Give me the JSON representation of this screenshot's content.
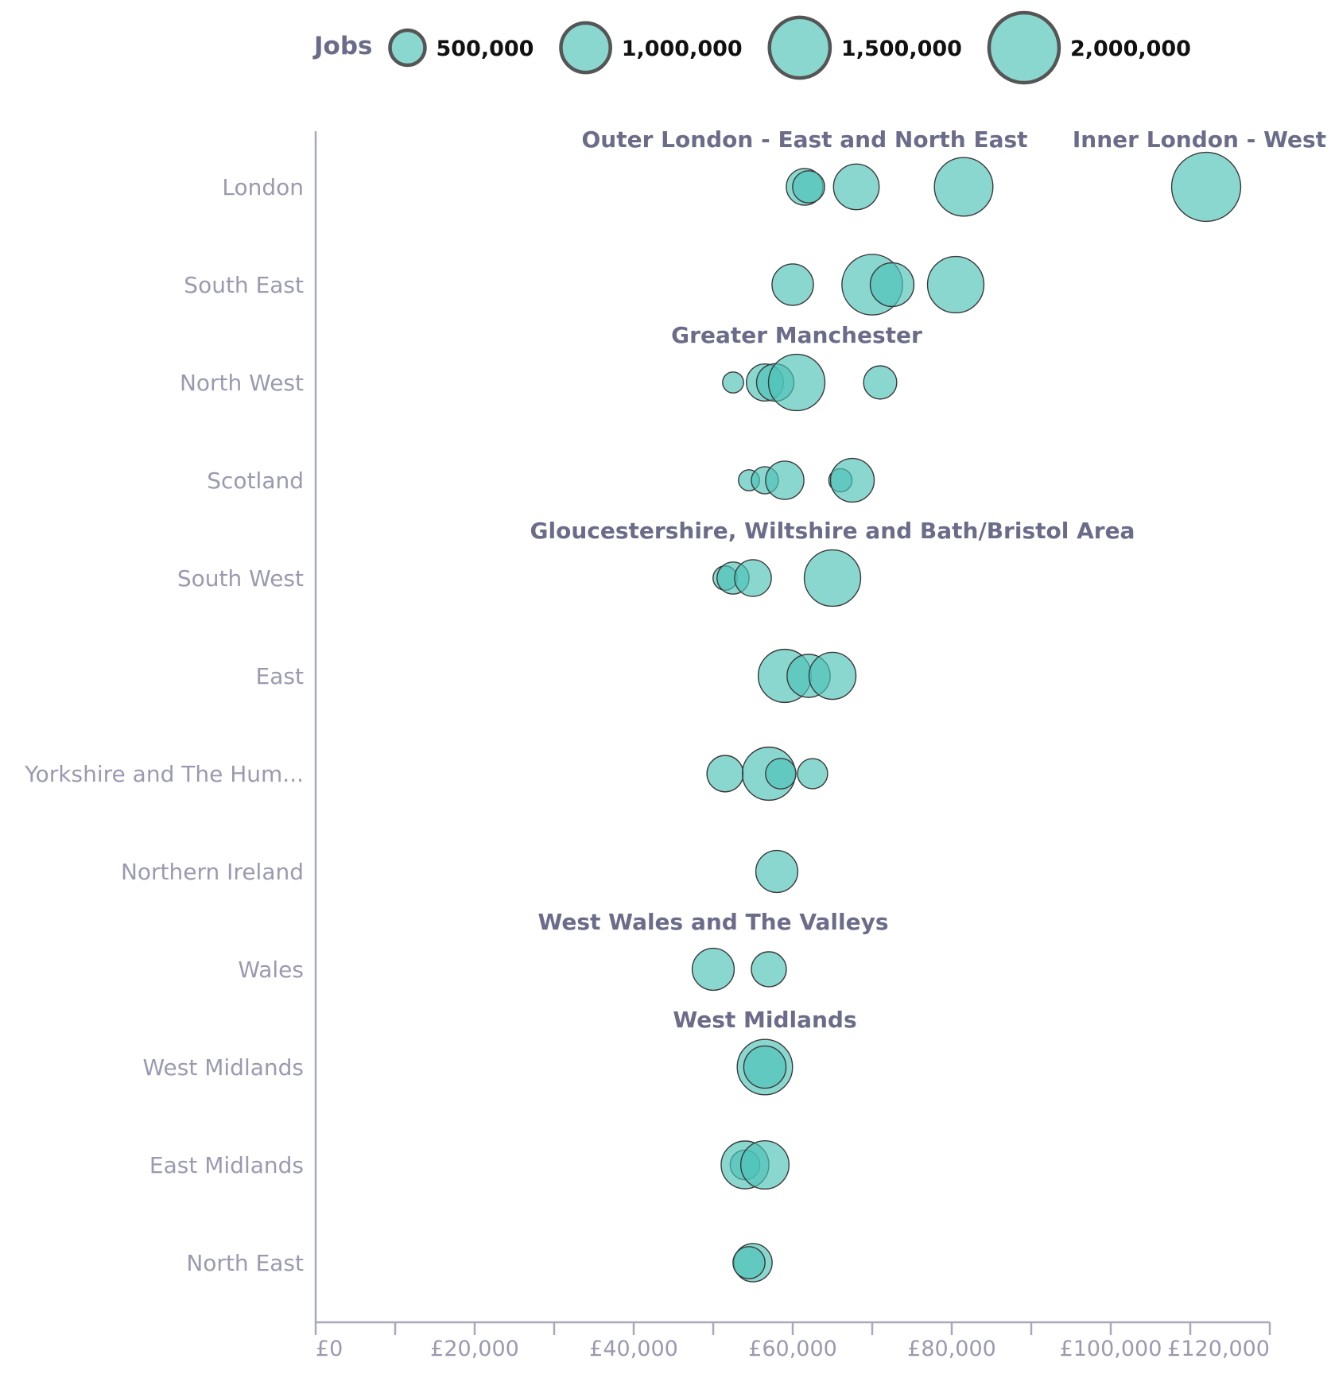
{
  "chart_data": {
    "type": "scatter",
    "subtype": "bubble",
    "xlim": [
      0,
      120000
    ],
    "x_ticks": [
      0,
      10000,
      20000,
      30000,
      40000,
      50000,
      60000,
      70000,
      80000,
      90000,
      100000,
      110000,
      120000
    ],
    "x_tick_labels": [
      {
        "value": 0,
        "label": "£0"
      },
      {
        "value": 20000,
        "label": "£20,000"
      },
      {
        "value": 40000,
        "label": "£40,000"
      },
      {
        "value": 60000,
        "label": "£60,000"
      },
      {
        "value": 80000,
        "label": "£80,000"
      },
      {
        "value": 100000,
        "label": "£100,000"
      },
      {
        "value": 120000,
        "label": "£120,000"
      }
    ],
    "categories": [
      "London",
      "South East",
      "North West",
      "Scotland",
      "South West",
      "East",
      "Yorkshire and The Hum...",
      "Northern Ireland",
      "Wales",
      "West Midlands",
      "East Midlands",
      "North East"
    ],
    "size_legend": {
      "title": "Jobs",
      "entries": [
        {
          "value": 500000,
          "label": "500,000"
        },
        {
          "value": 1000000,
          "label": "1,000,000"
        },
        {
          "value": 1500000,
          "label": "1,500,000"
        },
        {
          "value": 2000000,
          "label": "2,000,000"
        }
      ]
    },
    "annotations": [
      {
        "text": "Outer London - East and North East",
        "category": "London",
        "x": 61500
      },
      {
        "text": "Inner London - West",
        "category": "London",
        "x": 112000
      },
      {
        "text": "Greater Manchester",
        "category": "North West",
        "x": 60500
      },
      {
        "text": "Gloucestershire, Wiltshire and Bath/Bristol Area",
        "category": "South West",
        "x": 65000
      },
      {
        "text": "West Wales and The Valleys",
        "category": "Wales",
        "x": 50000
      },
      {
        "text": "West Midlands",
        "category": "West Midlands",
        "x": 56500
      }
    ],
    "series": [
      {
        "category": "London",
        "points": [
          {
            "x": 61500,
            "jobs": 550000
          },
          {
            "x": 62000,
            "jobs": 420000
          },
          {
            "x": 68000,
            "jobs": 850000
          },
          {
            "x": 81500,
            "jobs": 1400000
          },
          {
            "x": 112000,
            "jobs": 1950000
          }
        ]
      },
      {
        "category": "South East",
        "points": [
          {
            "x": 60000,
            "jobs": 700000
          },
          {
            "x": 70000,
            "jobs": 1500000
          },
          {
            "x": 72500,
            "jobs": 780000
          },
          {
            "x": 80500,
            "jobs": 1300000
          }
        ]
      },
      {
        "category": "North West",
        "points": [
          {
            "x": 52500,
            "jobs": 180000
          },
          {
            "x": 56500,
            "jobs": 560000
          },
          {
            "x": 57800,
            "jobs": 570000
          },
          {
            "x": 60500,
            "jobs": 1300000
          },
          {
            "x": 71000,
            "jobs": 450000
          }
        ]
      },
      {
        "category": "Scotland",
        "points": [
          {
            "x": 54500,
            "jobs": 180000
          },
          {
            "x": 56500,
            "jobs": 300000
          },
          {
            "x": 59000,
            "jobs": 600000
          },
          {
            "x": 66000,
            "jobs": 220000
          },
          {
            "x": 67500,
            "jobs": 780000
          }
        ]
      },
      {
        "category": "South West",
        "points": [
          {
            "x": 51500,
            "jobs": 240000
          },
          {
            "x": 52500,
            "jobs": 420000
          },
          {
            "x": 55000,
            "jobs": 550000
          },
          {
            "x": 65000,
            "jobs": 1300000
          }
        ]
      },
      {
        "category": "East",
        "points": [
          {
            "x": 59000,
            "jobs": 1150000
          },
          {
            "x": 62000,
            "jobs": 760000
          },
          {
            "x": 65000,
            "jobs": 900000
          }
        ]
      },
      {
        "category": "Yorkshire and The Hum...",
        "points": [
          {
            "x": 51500,
            "jobs": 540000
          },
          {
            "x": 57000,
            "jobs": 1150000
          },
          {
            "x": 58500,
            "jobs": 380000
          },
          {
            "x": 62500,
            "jobs": 370000
          }
        ]
      },
      {
        "category": "Northern Ireland",
        "points": [
          {
            "x": 58000,
            "jobs": 720000
          }
        ]
      },
      {
        "category": "Wales",
        "points": [
          {
            "x": 50000,
            "jobs": 720000
          },
          {
            "x": 57000,
            "jobs": 500000
          }
        ]
      },
      {
        "category": "West Midlands",
        "points": [
          {
            "x": 56500,
            "jobs": 1250000
          },
          {
            "x": 56500,
            "jobs": 730000
          }
        ]
      },
      {
        "category": "East Midlands",
        "points": [
          {
            "x": 54000,
            "jobs": 360000
          },
          {
            "x": 54000,
            "jobs": 930000
          },
          {
            "x": 56500,
            "jobs": 950000
          }
        ]
      },
      {
        "category": "North East",
        "points": [
          {
            "x": 55000,
            "jobs": 600000
          },
          {
            "x": 54500,
            "jobs": 420000
          }
        ]
      }
    ]
  }
}
